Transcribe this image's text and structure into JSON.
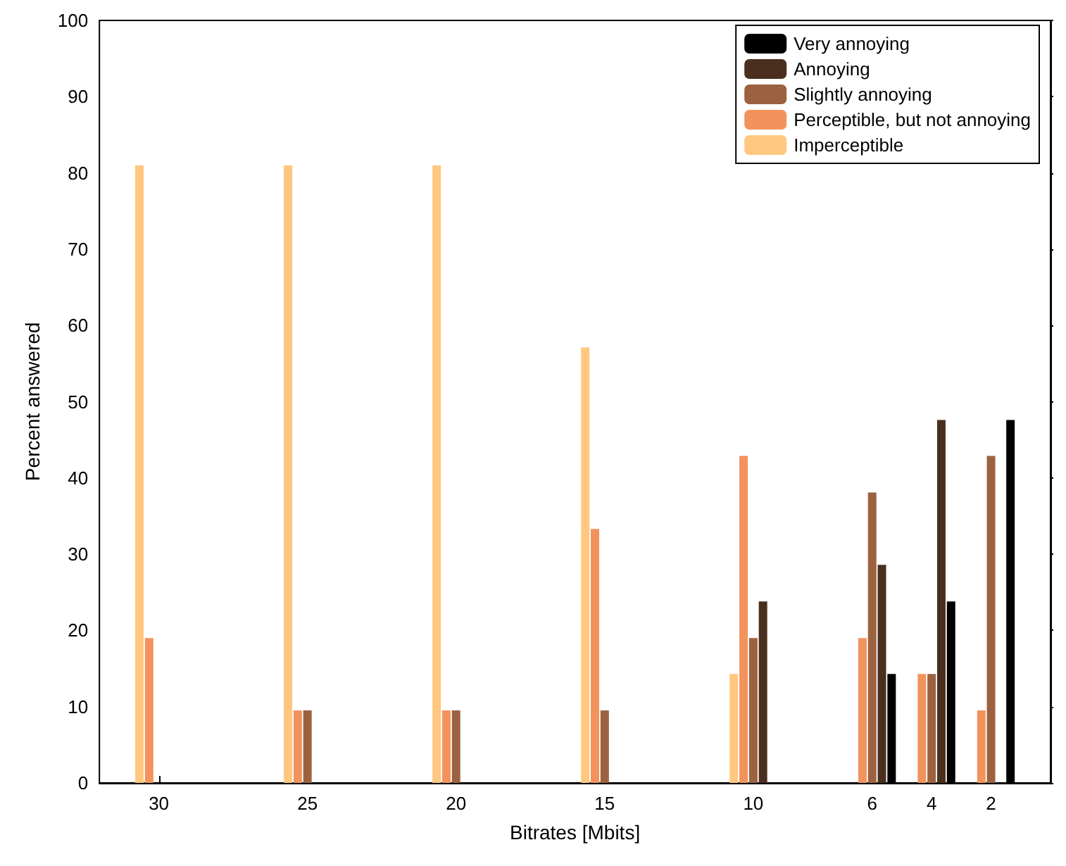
{
  "chart_data": {
    "type": "bar",
    "xlabel": "Bitrates [Mbits]",
    "ylabel": "Percent answered",
    "x": [
      30,
      25,
      20,
      15,
      10,
      6,
      4,
      2
    ],
    "xlim": [
      32,
      0
    ],
    "xticks": [
      30,
      25,
      20,
      15,
      10,
      6,
      4,
      2
    ],
    "ylim": [
      0,
      100
    ],
    "yticks": [
      0,
      10,
      20,
      30,
      40,
      50,
      60,
      70,
      80,
      90,
      100
    ],
    "grid": false,
    "legend": "top right",
    "series": [
      {
        "name": "Imperceptible",
        "color": "#ffc77f",
        "values": [
          81,
          81,
          81,
          57.1,
          14.3,
          0,
          0,
          0
        ]
      },
      {
        "name": "Perceptible, but not annoying",
        "color": "#f2935c",
        "values": [
          19,
          9.5,
          9.5,
          33.3,
          42.9,
          19,
          14.3,
          9.5
        ]
      },
      {
        "name": "Slightly annoying",
        "color": "#9c6240",
        "values": [
          0,
          9.5,
          9.5,
          9.5,
          19,
          38.1,
          14.3,
          42.9
        ]
      },
      {
        "name": "Annoying",
        "color": "#4a2f1f",
        "values": [
          0,
          0,
          0,
          0,
          23.8,
          28.6,
          47.6,
          0
        ]
      },
      {
        "name": "Very annoying",
        "color": "#000000",
        "values": [
          0,
          0,
          0,
          0,
          0,
          14.3,
          23.8,
          47.6
        ]
      }
    ]
  }
}
